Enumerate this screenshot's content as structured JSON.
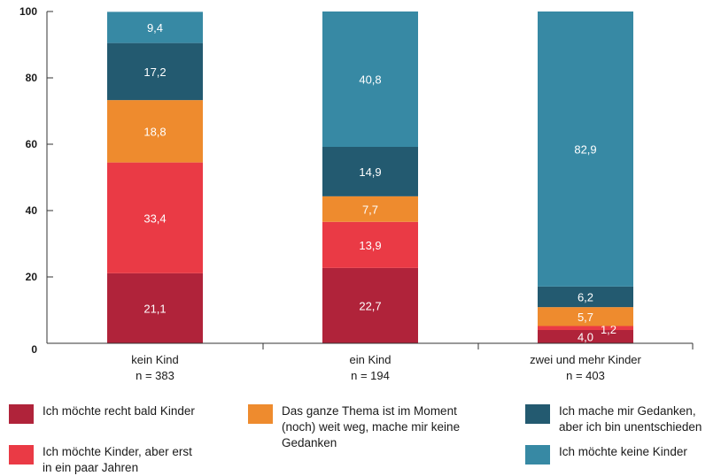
{
  "chart_data": {
    "type": "bar",
    "stacked": true,
    "title": "",
    "xlabel": "",
    "ylabel": "",
    "ylim": [
      0,
      100
    ],
    "yticks": [
      0,
      20,
      40,
      60,
      80,
      100
    ],
    "categories": [
      "kein Kind",
      "ein Kind",
      "zwei und mehr Kinder"
    ],
    "category_n": [
      "n = 383",
      "n = 194",
      "n = 403"
    ],
    "series": [
      {
        "name": "Ich möchte recht bald Kinder",
        "color": "#b0233a",
        "values": [
          21.1,
          22.7,
          4.0
        ],
        "labels": [
          "21,1",
          "22,7",
          "4,0"
        ]
      },
      {
        "name": "Ich möchte Kinder, aber erst in ein paar Jahren",
        "color": "#ea3a45",
        "values": [
          33.4,
          13.9,
          1.2
        ],
        "labels": [
          "33,4",
          "13,9",
          "1,2"
        ]
      },
      {
        "name": "Das ganze Thema ist im Moment (noch) weit weg, mache mir keine Gedanken",
        "color": "#ee8b2e",
        "values": [
          18.8,
          7.7,
          5.7
        ],
        "labels": [
          "18,8",
          "7,7",
          "5,7"
        ]
      },
      {
        "name": "Ich mache mir Gedanken, aber ich bin unentschieden",
        "color": "#235a70",
        "values": [
          17.2,
          14.9,
          6.2
        ],
        "labels": [
          "17,2",
          "14,9",
          "6,2"
        ]
      },
      {
        "name": "Ich möchte keine Kinder",
        "color": "#3789a4",
        "values": [
          9.4,
          40.8,
          82.9
        ],
        "labels": [
          "9,4",
          "40,8",
          "82,9"
        ]
      }
    ],
    "grid": false,
    "legend_position": "bottom"
  },
  "legend": {
    "item1": "Ich möchte recht bald Kinder",
    "item2": "Ich möchte Kinder, aber erst\nin ein paar Jahren",
    "item3": "Das ganze Thema ist im Moment\n(noch) weit weg, mache mir keine\nGedanken",
    "item4": "Ich mache mir Gedanken,\naber ich bin unentschieden",
    "item5": "Ich möchte keine Kinder"
  }
}
